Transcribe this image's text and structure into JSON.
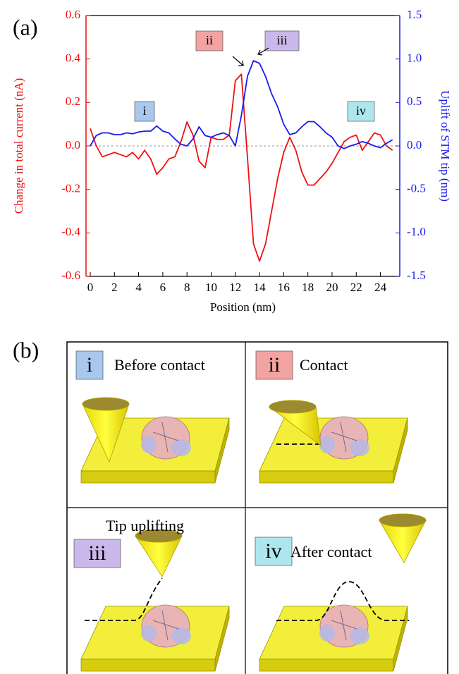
{
  "panel_labels": [
    "(a)",
    "(b)"
  ],
  "chart_data": {
    "type": "line",
    "xlabel": "Position (nm)",
    "ylabel": "Change in total current (nA)",
    "y2label": "Uplift of STM tip (nm)",
    "x": [
      0,
      0.5,
      1,
      1.5,
      2,
      2.5,
      3,
      3.5,
      4,
      4.5,
      5,
      5.5,
      6,
      6.5,
      7,
      7.5,
      8,
      8.5,
      9,
      9.5,
      10,
      10.5,
      11,
      11.5,
      12,
      12.5,
      13,
      13.5,
      14,
      14.5,
      15,
      15.5,
      16,
      16.5,
      17,
      17.5,
      18,
      18.5,
      19,
      19.5,
      20,
      20.5,
      21,
      21.5,
      22,
      22.5,
      23,
      23.5,
      24,
      24.5,
      25
    ],
    "xlim": [
      -0.35,
      25.6
    ],
    "xticks": [
      0,
      2,
      4,
      6,
      8,
      10,
      12,
      14,
      16,
      18,
      20,
      22,
      24
    ],
    "ylim": [
      -0.6,
      0.6
    ],
    "yticks": [
      -0.6,
      -0.4,
      -0.2,
      {
        "value": 0,
        "label": "0.0"
      },
      0.2,
      0.4,
      0.6
    ],
    "y2lim": [
      -1.5,
      1.5
    ],
    "y2ticks": [
      -1.5,
      {
        "value": -1,
        "label": "-1.0"
      },
      -0.5,
      {
        "value": 0,
        "label": "0.0"
      },
      0.5,
      {
        "value": 1,
        "label": "1.0"
      },
      1.5
    ],
    "series": [
      {
        "color": "#ee1111",
        "values": [
          0.08,
          0.0,
          -0.05,
          -0.04,
          -0.03,
          -0.04,
          -0.05,
          -0.03,
          -0.06,
          -0.02,
          -0.06,
          -0.13,
          -0.1,
          -0.06,
          -0.05,
          0.02,
          0.11,
          0.05,
          -0.07,
          -0.1,
          0.04,
          0.03,
          0.03,
          0.05,
          0.3,
          0.33,
          -0.05,
          -0.45,
          -0.53,
          -0.45,
          -0.3,
          -0.15,
          -0.03,
          0.04,
          -0.02,
          -0.12,
          -0.18,
          -0.18,
          -0.15,
          -0.12,
          -0.08,
          -0.03,
          0.02,
          0.04,
          0.05,
          -0.02,
          0.02,
          0.06,
          0.05,
          0.0,
          -0.02
        ]
      },
      {
        "color": "#1a1aee",
        "axis": "y2",
        "values": [
          0.0,
          0.12,
          0.15,
          0.15,
          0.13,
          0.13,
          0.15,
          0.14,
          0.16,
          0.17,
          0.17,
          0.23,
          0.17,
          0.15,
          0.08,
          0.02,
          0.0,
          0.08,
          0.22,
          0.12,
          0.1,
          0.13,
          0.15,
          0.12,
          0.0,
          0.35,
          0.8,
          0.98,
          0.95,
          0.8,
          0.6,
          0.45,
          0.25,
          0.13,
          0.15,
          0.22,
          0.28,
          0.28,
          0.22,
          0.15,
          0.1,
          0.0,
          -0.03,
          0.0,
          0.02,
          0.05,
          0.03,
          0.0,
          -0.02,
          0.03,
          0.07
        ]
      }
    ],
    "annotations": [
      {
        "text": "i",
        "color": "#a8c8ee"
      },
      {
        "text": "ii",
        "color": "#f4a3a3"
      },
      {
        "text": "iii",
        "color": "#cbb8ea"
      },
      {
        "text": "iv",
        "color": "#aee6ee"
      }
    ]
  },
  "diagram": {
    "panels": [
      {
        "badge": "i",
        "caption": "Before contact",
        "color": "#a8c8ee"
      },
      {
        "badge": "ii",
        "caption": "Contact",
        "color": "#f4a3a3"
      },
      {
        "badge": "iii",
        "caption": "Tip uplifting",
        "color": "#cbb8ea"
      },
      {
        "badge": "iv",
        "caption": "After contact",
        "color": "#aee6ee"
      }
    ]
  }
}
